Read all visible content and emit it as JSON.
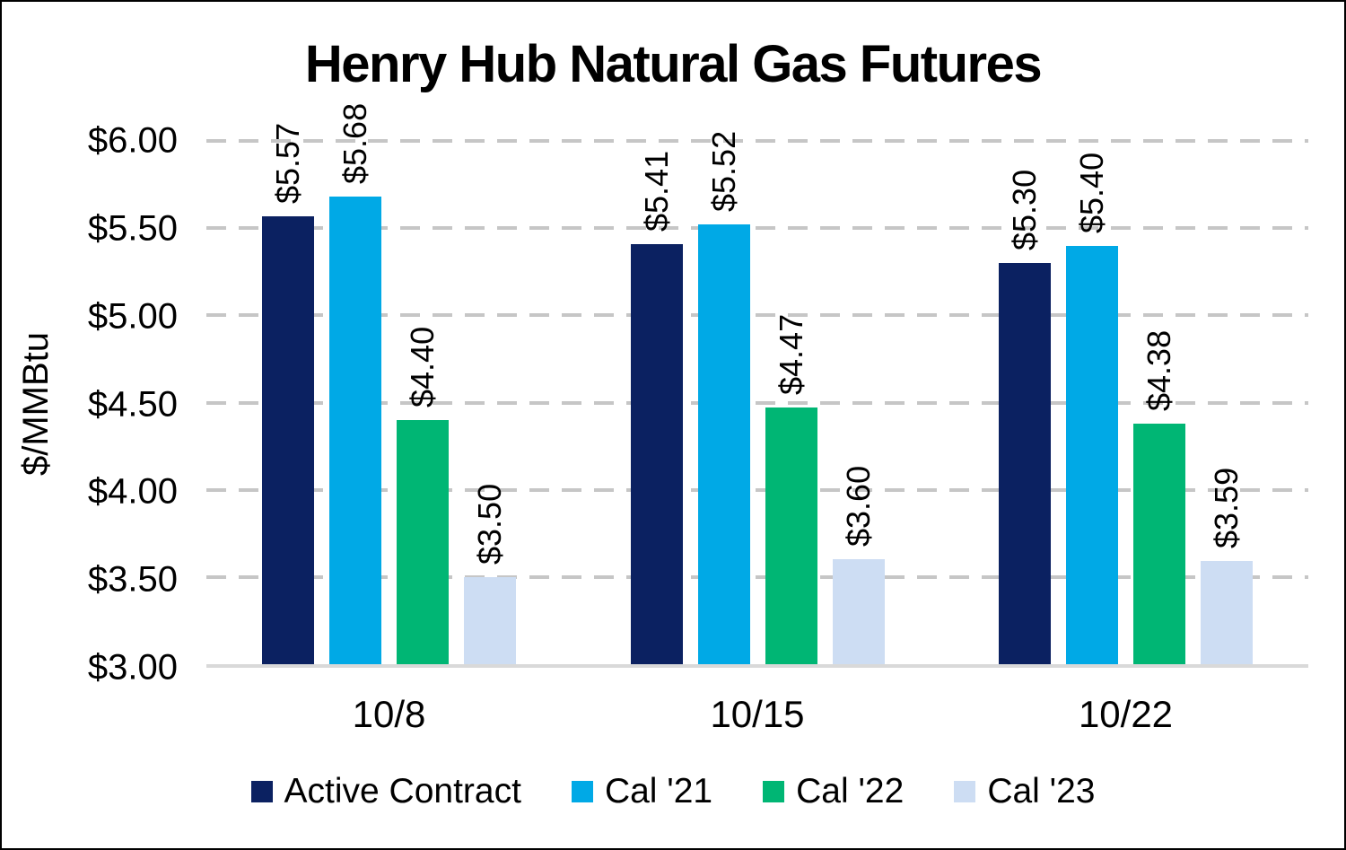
{
  "chart_data": {
    "type": "bar",
    "title": "Henry Hub Natural Gas Futures",
    "ylabel": "$/MMBtu",
    "xlabel": "",
    "categories": [
      "10/8",
      "10/15",
      "10/22"
    ],
    "series": [
      {
        "name": "Active Contract",
        "color": "#0B2161",
        "values": [
          5.57,
          5.41,
          5.3
        ],
        "labels": [
          "$5.57",
          "$5.41",
          "$5.30"
        ]
      },
      {
        "name": "Cal '21",
        "color": "#00A9E6",
        "values": [
          5.68,
          5.52,
          5.4
        ],
        "labels": [
          "$5.68",
          "$5.52",
          "$5.40"
        ]
      },
      {
        "name": "Cal '22",
        "color": "#00B674",
        "values": [
          4.4,
          4.47,
          4.38
        ],
        "labels": [
          "$4.40",
          "$4.47",
          "$4.38"
        ]
      },
      {
        "name": "Cal '23",
        "color": "#CDDDF3",
        "values": [
          3.5,
          3.6,
          3.59
        ],
        "labels": [
          "$3.50",
          "$3.60",
          "$3.59"
        ]
      }
    ],
    "ylim": [
      3.0,
      6.0
    ],
    "yticks": [
      "$6.00",
      "$5.50",
      "$5.00",
      "$4.50",
      "$4.00",
      "$3.50",
      "$3.00"
    ],
    "grid": "horizontal-dashed",
    "gridline_color": "#C6C6C6",
    "axis_line_color": "#D9D9D9",
    "legend_position": "bottom"
  }
}
